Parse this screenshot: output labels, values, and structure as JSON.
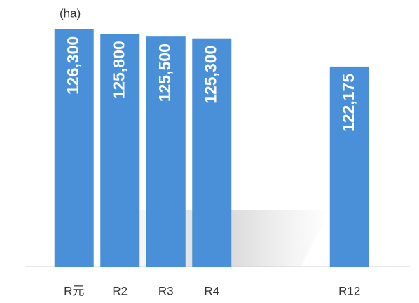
{
  "chart_data": {
    "type": "bar",
    "unit_label": "(ha)",
    "categories": [
      "R元",
      "R2",
      "R3",
      "R4",
      null,
      null,
      "R12"
    ],
    "values": [
      126300,
      125800,
      125500,
      125300,
      null,
      null,
      122175
    ],
    "value_labels": [
      "126,300",
      "125,800",
      "125,500",
      "125,300",
      null,
      null,
      "122,175"
    ],
    "color": "#4a90d9",
    "ylim": [
      100000,
      128000
    ]
  }
}
